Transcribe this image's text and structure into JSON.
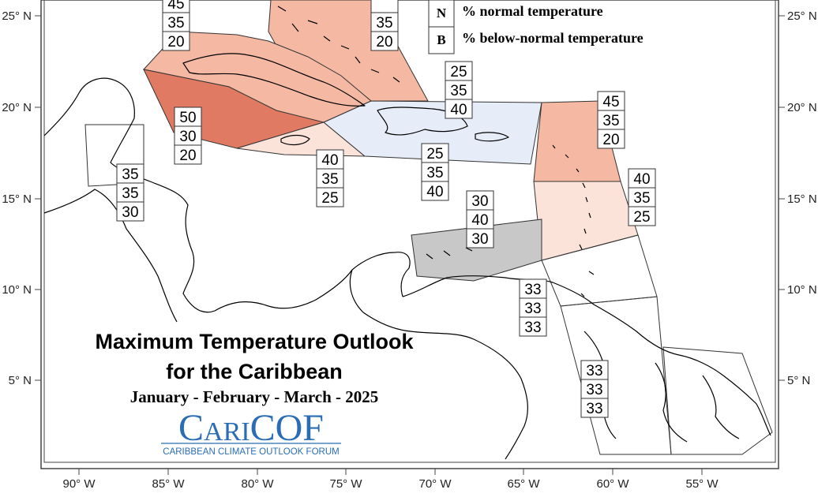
{
  "title": {
    "line1": "Maximum Temperature Outlook",
    "line2": "for the Caribbean",
    "period": "January - February - March - 2025"
  },
  "logo": {
    "name": "CariCOF",
    "subtitle": "CARIBBEAN CLIMATE OUTLOOK FORUM",
    "color": "#2a6db5"
  },
  "legend": [
    {
      "key": "N",
      "text": "% normal temperature"
    },
    {
      "key": "B",
      "text": "% below-normal temperature"
    }
  ],
  "axes": {
    "x_ticks": [
      "90° W",
      "85° W",
      "80° W",
      "75° W",
      "70° W",
      "65° W",
      "60° W",
      "55° W"
    ],
    "y_ticks": [
      "25° N",
      "20° N",
      "15° N",
      "10° N",
      "5° N"
    ]
  },
  "colors": {
    "above_50": "#e07a62",
    "above_45": "#f5b8a3",
    "above_40": "#fbe3da",
    "below_40": "#e6ecf8",
    "normal_40": "#c8c8c8",
    "outline": "#333333"
  },
  "probabilities": [
    {
      "id": "bahamas-west",
      "values": [
        "45",
        "35",
        "20"
      ]
    },
    {
      "id": "bahamas-east",
      "values": [
        "",
        "35",
        "20"
      ]
    },
    {
      "id": "cuba-jamaica-west",
      "values": [
        "50",
        "30",
        "20"
      ]
    },
    {
      "id": "belize-central",
      "values": [
        "35",
        "35",
        "30"
      ]
    },
    {
      "id": "jamaica",
      "values": [
        "40",
        "35",
        "25"
      ]
    },
    {
      "id": "hispaniola-puerto-rico",
      "values": [
        "25",
        "35",
        "40"
      ]
    },
    {
      "id": "hispaniola-south",
      "values": [
        "25",
        "35",
        "40"
      ]
    },
    {
      "id": "abc-islands",
      "values": [
        "30",
        "40",
        "30"
      ]
    },
    {
      "id": "leeward-islands",
      "values": [
        "45",
        "35",
        "20"
      ]
    },
    {
      "id": "windward-islands",
      "values": [
        "40",
        "35",
        "25"
      ]
    },
    {
      "id": "trinidad-tobago",
      "values": [
        "33",
        "33",
        "33"
      ]
    },
    {
      "id": "guianas",
      "values": [
        "33",
        "33",
        "33"
      ]
    }
  ]
}
